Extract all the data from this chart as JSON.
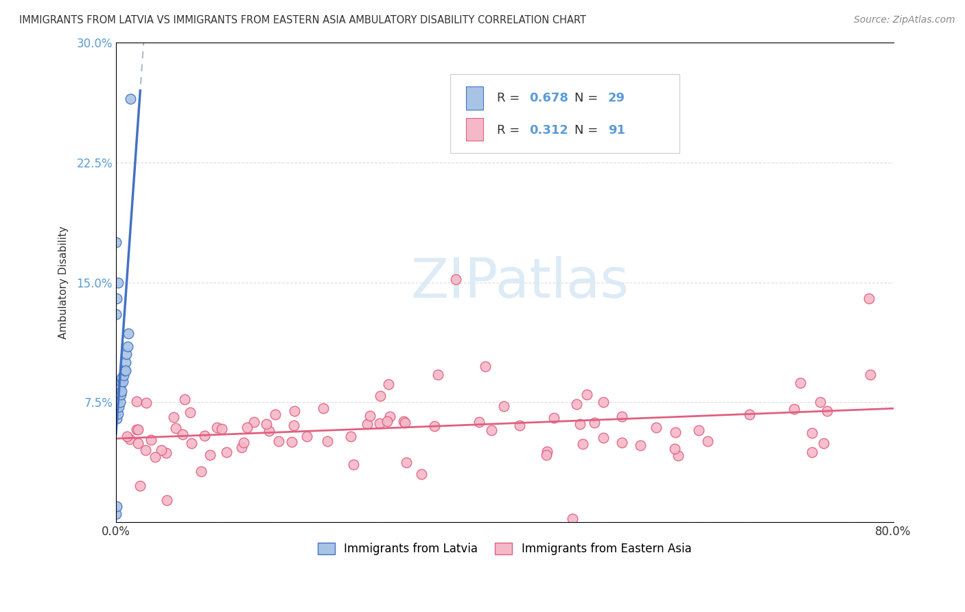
{
  "title": "IMMIGRANTS FROM LATVIA VS IMMIGRANTS FROM EASTERN ASIA AMBULATORY DISABILITY CORRELATION CHART",
  "source": "Source: ZipAtlas.com",
  "ylabel": "Ambulatory Disability",
  "xlim": [
    0,
    0.8
  ],
  "ylim": [
    0,
    0.3
  ],
  "ytick_vals": [
    0.0,
    0.075,
    0.15,
    0.225,
    0.3
  ],
  "ytick_labels": [
    "",
    "7.5%",
    "15.0%",
    "22.5%",
    "30.0%"
  ],
  "xtick_vals": [
    0.0,
    0.1,
    0.2,
    0.3,
    0.4,
    0.5,
    0.6,
    0.7,
    0.8
  ],
  "xtick_labels": [
    "0.0%",
    "",
    "",
    "",
    "",
    "",
    "",
    "",
    "80.0%"
  ],
  "blue_R": 0.678,
  "blue_N": 29,
  "pink_R": 0.312,
  "pink_N": 91,
  "blue_scatter_color": "#a8c4e5",
  "blue_edge_color": "#4472C4",
  "pink_scatter_color": "#f5b8c8",
  "pink_edge_color": "#e06080",
  "blue_line_color": "#4472C4",
  "pink_line_color": "#e06080",
  "dash_line_color": "#aabbcc",
  "tick_label_color": "#5b9bd5",
  "text_color": "#333333",
  "source_color": "#888888",
  "grid_color": "#dddddd",
  "watermark_color": "#d8e8f5",
  "watermark_text": "ZIPatlas",
  "legend_label_blue": "Immigrants from Latvia",
  "legend_label_pink": "Immigrants from Eastern Asia"
}
